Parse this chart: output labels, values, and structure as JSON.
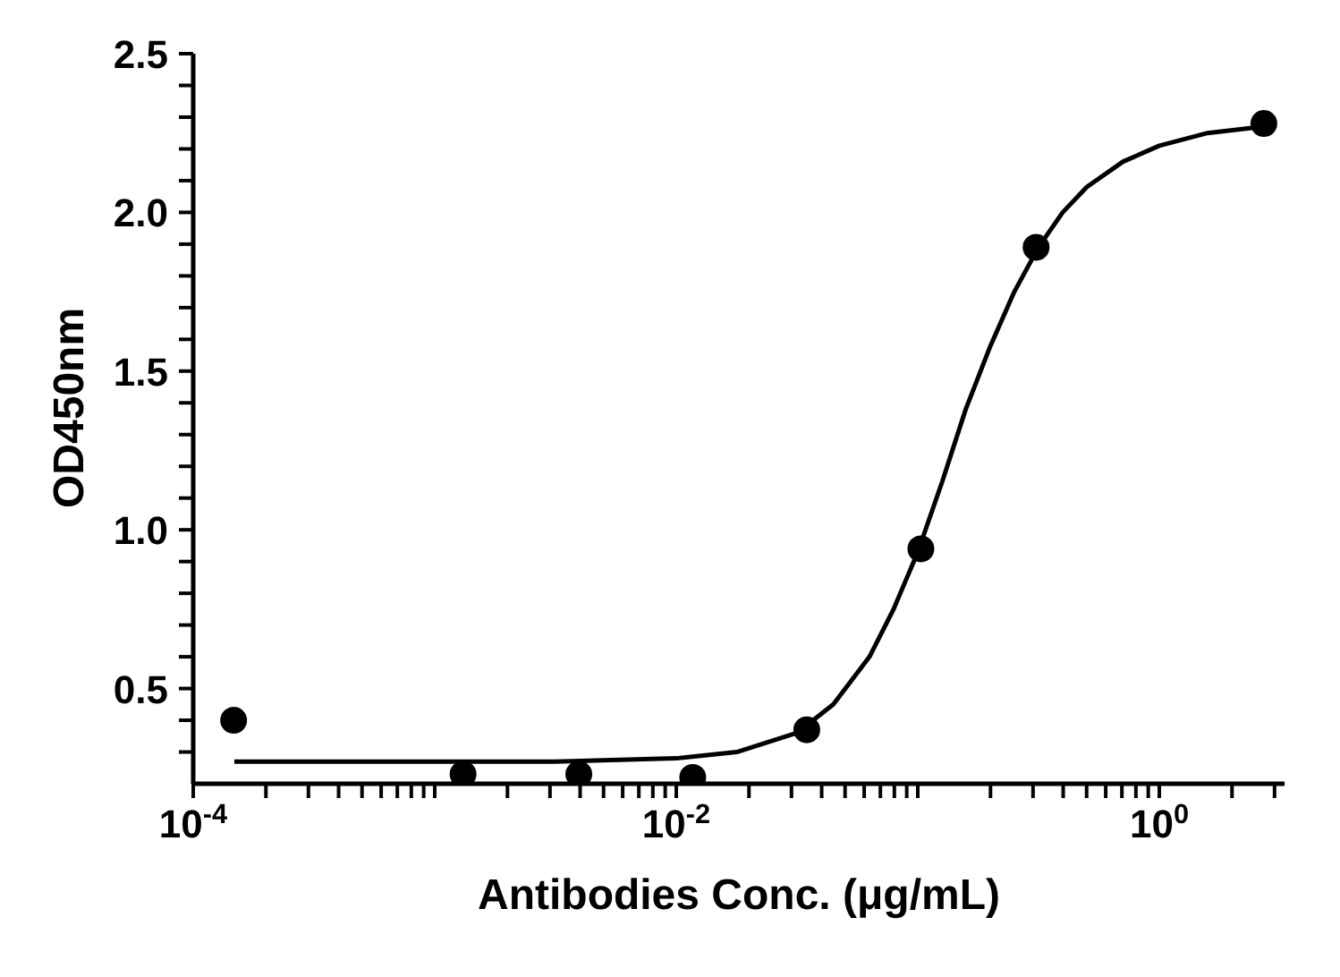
{
  "chart_data": {
    "type": "scatter",
    "xlabel": "Antibodies Conc. (μg/mL)",
    "ylabel": "OD450nm",
    "log": "x",
    "grid": false,
    "legend": false,
    "marker": "circle",
    "xlim": [
      0.0001,
      3.3
    ],
    "ylim": [
      0.2,
      2.5
    ],
    "xticks": [
      {
        "value": 0.0001,
        "label": "10$^{-4}$"
      },
      {
        "value": 0.0002,
        "label": null
      },
      {
        "value": 0.0003,
        "label": null
      },
      {
        "value": 0.0004,
        "label": null
      },
      {
        "value": 0.0005,
        "label": null
      },
      {
        "value": 0.0006,
        "label": null
      },
      {
        "value": 0.0007,
        "label": null
      },
      {
        "value": 0.0008,
        "label": null
      },
      {
        "value": 0.0009,
        "label": null
      },
      {
        "value": 0.001,
        "label": null
      },
      {
        "value": 0.002,
        "label": null
      },
      {
        "value": 0.003,
        "label": null
      },
      {
        "value": 0.004,
        "label": null
      },
      {
        "value": 0.005,
        "label": null
      },
      {
        "value": 0.006,
        "label": null
      },
      {
        "value": 0.007,
        "label": null
      },
      {
        "value": 0.008,
        "label": null
      },
      {
        "value": 0.009,
        "label": null
      },
      {
        "value": 0.01,
        "label": "10$^{-2}$"
      },
      {
        "value": 0.02,
        "label": null
      },
      {
        "value": 0.03,
        "label": null
      },
      {
        "value": 0.04,
        "label": null
      },
      {
        "value": 0.05,
        "label": null
      },
      {
        "value": 0.06,
        "label": null
      },
      {
        "value": 0.07,
        "label": null
      },
      {
        "value": 0.08,
        "label": null
      },
      {
        "value": 0.09,
        "label": null
      },
      {
        "value": 0.1,
        "label": null
      },
      {
        "value": 0.2,
        "label": null
      },
      {
        "value": 0.3,
        "label": null
      },
      {
        "value": 0.4,
        "label": null
      },
      {
        "value": 0.5,
        "label": null
      },
      {
        "value": 0.6,
        "label": null
      },
      {
        "value": 0.7,
        "label": null
      },
      {
        "value": 0.8,
        "label": null
      },
      {
        "value": 0.9,
        "label": null
      },
      {
        "value": 1,
        "label": "10$^{0}$"
      },
      {
        "value": 2,
        "label": null
      },
      {
        "value": 3,
        "label": null
      }
    ],
    "yticks": [
      {
        "value": 0.3,
        "label": null
      },
      {
        "value": 0.4,
        "label": null
      },
      {
        "value": 0.5,
        "label": "0.5"
      },
      {
        "value": 0.6,
        "label": null
      },
      {
        "value": 0.7,
        "label": null
      },
      {
        "value": 0.8,
        "label": null
      },
      {
        "value": 0.9,
        "label": null
      },
      {
        "value": 1,
        "label": "1.0"
      },
      {
        "value": 1.1,
        "label": null
      },
      {
        "value": 1.2,
        "label": null
      },
      {
        "value": 1.3,
        "label": null
      },
      {
        "value": 1.4,
        "label": null
      },
      {
        "value": 1.5,
        "label": "1.5"
      },
      {
        "value": 1.6,
        "label": null
      },
      {
        "value": 1.7,
        "label": null
      },
      {
        "value": 1.8,
        "label": null
      },
      {
        "value": 1.9,
        "label": null
      },
      {
        "value": 2,
        "label": "2.0"
      },
      {
        "value": 2.1,
        "label": null
      },
      {
        "value": 2.2,
        "label": null
      },
      {
        "value": 2.3,
        "label": null
      },
      {
        "value": 2.4,
        "label": null
      },
      {
        "value": 2.5,
        "label": "2.5"
      }
    ],
    "series": [
      {
        "color": "#000000",
        "x": [
          0.000147,
          0.00131,
          0.00395,
          0.0117,
          0.0347,
          0.103,
          0.309,
          2.71
        ],
        "values": [
          0.4,
          0.23,
          0.23,
          0.22,
          0.37,
          0.94,
          1.89,
          2.28
        ]
      },
      {
        "type": "line",
        "color": "#000000",
        "marker": "none",
        "x": [
          0.000148,
          0.001,
          0.00316,
          0.01,
          0.0178,
          0.0316,
          0.0447,
          0.0631,
          0.0794,
          0.1,
          0.126,
          0.158,
          0.2,
          0.251,
          0.316,
          0.398,
          0.501,
          0.708,
          1,
          1.585,
          2.69
        ],
        "values": [
          0.27,
          0.27,
          0.27,
          0.28,
          0.3,
          0.36,
          0.45,
          0.6,
          0.75,
          0.93,
          1.15,
          1.38,
          1.58,
          1.75,
          1.89,
          2.0,
          2.08,
          2.16,
          2.21,
          2.25,
          2.27
        ]
      }
    ]
  }
}
